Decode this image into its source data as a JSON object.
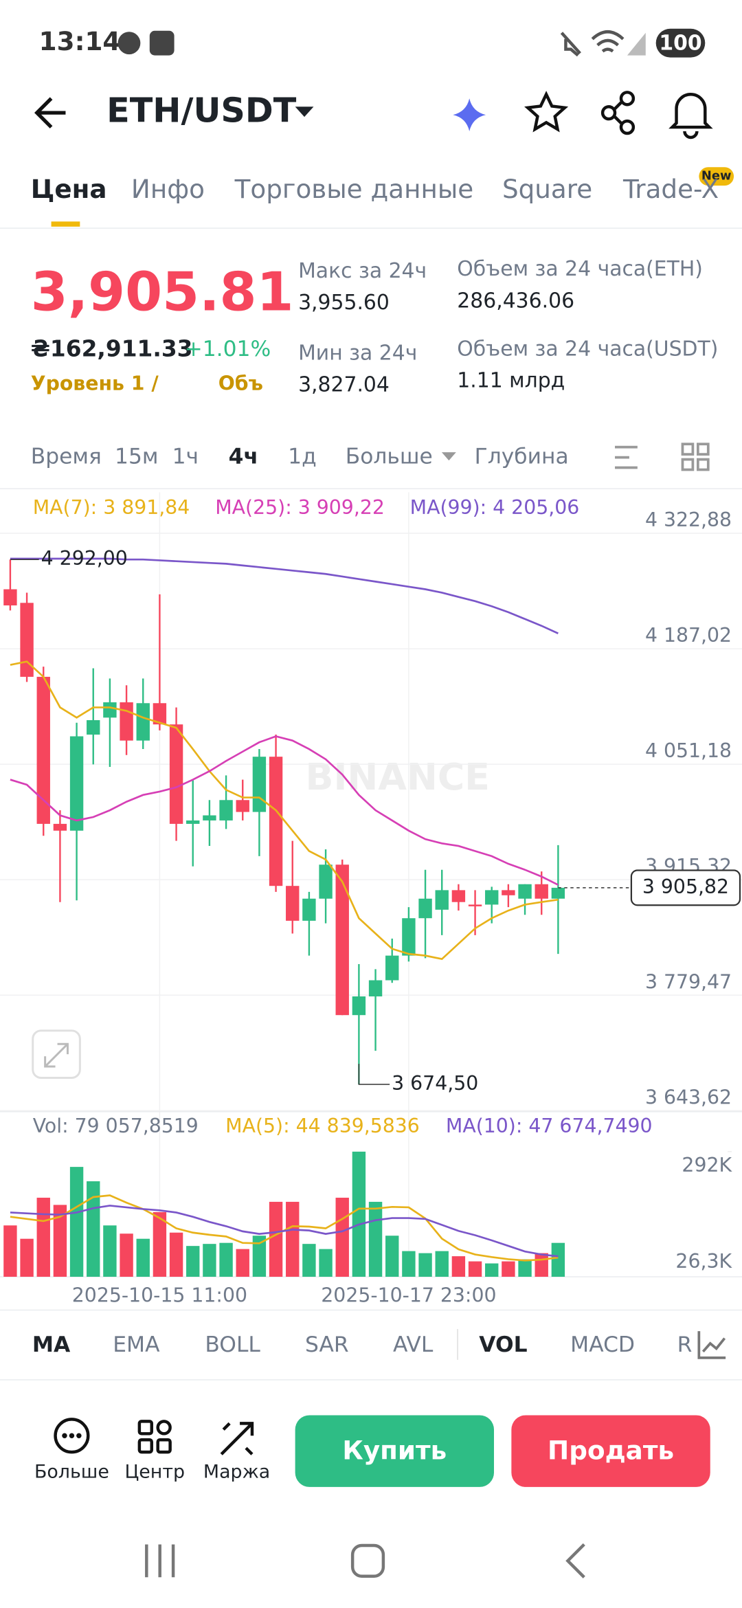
{
  "status_bar": {
    "time": "13:14",
    "battery": "100"
  },
  "header": {
    "pair": "ETH/USDT"
  },
  "tabs": [
    "Цена",
    "Инфо",
    "Торговые данные",
    "Square",
    "Trade-X"
  ],
  "tab_badge": "New",
  "ticker": {
    "price": "3,905.81",
    "price_uah": "₴162,911.33",
    "change": "+1.01%",
    "level": "Уровень 1 /",
    "volume_short": "Объ",
    "stats": [
      {
        "label": "Макс за 24ч",
        "value": "3,955.60"
      },
      {
        "label": "Мин за 24ч",
        "value": "3,827.04"
      },
      {
        "label": "Объем за 24 часа(ETH)",
        "value": "286,436.06"
      },
      {
        "label": "Объем за 24 часа(USDT)",
        "value": "1.11 млрд"
      }
    ]
  },
  "intervals": [
    "Время",
    "15м",
    "1ч",
    "4ч",
    "1д",
    "Больше",
    "Глубина"
  ],
  "chart_data": {
    "type": "candlestick",
    "watermark": "BINANCE",
    "times": [
      null,
      null,
      null,
      null,
      null,
      null,
      null,
      null,
      null,
      "2025-10-15 11:00",
      null,
      null,
      null,
      null,
      null,
      null,
      null,
      null,
      null,
      null,
      null,
      null,
      null,
      null,
      "2025-10-17 23:00",
      null,
      null,
      null,
      null,
      null,
      null,
      null,
      null,
      null
    ],
    "candles": [
      {
        "open": 4257,
        "high": 4292,
        "low": 4232,
        "close": 4238
      },
      {
        "open": 4241,
        "high": 4253,
        "low": 4148,
        "close": 4154
      },
      {
        "open": 4154,
        "high": 4166,
        "low": 3967,
        "close": 3981
      },
      {
        "open": 3981,
        "high": 3997,
        "low": 3889,
        "close": 3973
      },
      {
        "open": 3973,
        "high": 4100,
        "low": 3891,
        "close": 4084
      },
      {
        "open": 4086,
        "high": 4164,
        "low": 4051,
        "close": 4103
      },
      {
        "open": 4106,
        "high": 4152,
        "low": 4048,
        "close": 4124
      },
      {
        "open": 4124,
        "high": 4144,
        "low": 4062,
        "close": 4079
      },
      {
        "open": 4079,
        "high": 4152,
        "low": 4069,
        "close": 4123
      },
      {
        "open": 4123,
        "high": 4251,
        "low": 4091,
        "close": 4098
      },
      {
        "open": 4098,
        "high": 4118,
        "low": 3961,
        "close": 3981
      },
      {
        "open": 3981,
        "high": 4033,
        "low": 3931,
        "close": 3985
      },
      {
        "open": 3985,
        "high": 4009,
        "low": 3955,
        "close": 3991
      },
      {
        "open": 3985,
        "high": 4038,
        "low": 3975,
        "close": 4009
      },
      {
        "open": 4009,
        "high": 4033,
        "low": 3985,
        "close": 3995
      },
      {
        "open": 3995,
        "high": 4069,
        "low": 3943,
        "close": 4060
      },
      {
        "open": 4060,
        "high": 4086,
        "low": 3901,
        "close": 3908
      },
      {
        "open": 3908,
        "high": 3961,
        "low": 3852,
        "close": 3867
      },
      {
        "open": 3867,
        "high": 3901,
        "low": 3826,
        "close": 3893
      },
      {
        "open": 3893,
        "high": 3951,
        "low": 3864,
        "close": 3933
      },
      {
        "open": 3933,
        "high": 3939,
        "low": 3756,
        "close": 3756
      },
      {
        "open": 3756,
        "high": 3816,
        "low": 3674.5,
        "close": 3778
      },
      {
        "open": 3778,
        "high": 3810,
        "low": 3714,
        "close": 3797
      },
      {
        "open": 3797,
        "high": 3846,
        "low": 3794,
        "close": 3826
      },
      {
        "open": 3826,
        "high": 3883,
        "low": 3819,
        "close": 3870
      },
      {
        "open": 3870,
        "high": 3927,
        "low": 3823,
        "close": 3893
      },
      {
        "open": 3880,
        "high": 3927,
        "low": 3850,
        "close": 3903
      },
      {
        "open": 3903,
        "high": 3910,
        "low": 3879,
        "close": 3889
      },
      {
        "open": 3886,
        "high": 3903,
        "low": 3850,
        "close": 3884
      },
      {
        "open": 3886,
        "high": 3907,
        "low": 3864,
        "close": 3903
      },
      {
        "open": 3903,
        "high": 3910,
        "low": 3883,
        "close": 3897
      },
      {
        "open": 3893,
        "high": 3910,
        "low": 3874,
        "close": 3910
      },
      {
        "open": 3910,
        "high": 3925,
        "low": 3874,
        "close": 3893
      },
      {
        "open": 3893,
        "high": 3956,
        "low": 3828,
        "close": 3905.82
      }
    ],
    "up_color": "#2ebd85",
    "down_color": "#f6465d",
    "ylim": [
      3643.62,
      4322.88
    ],
    "yticks": [
      {
        "value": 4322.88,
        "label": "4 322,88"
      },
      {
        "value": 4187.02,
        "label": "4 187,02"
      },
      {
        "value": 4051.18,
        "label": "4 051,18"
      },
      {
        "value": 3915.32,
        "label": "3 915,32"
      },
      {
        "value": 3779.47,
        "label": "3 779,47"
      },
      {
        "value": 3643.62,
        "label": "3 643,62"
      }
    ],
    "last_price": {
      "value": 3905.82,
      "label": "3 905,82"
    },
    "high_label": "4 292,00",
    "low_label": "3 674,50",
    "series": [
      {
        "legend": "MA(7): 3 891,84",
        "color": "#e8b21a",
        "values": [
          4168,
          4172,
          4154,
          4118,
          4106,
          4118,
          4118,
          4114,
          4106,
          4100,
          4094,
          4069,
          4043,
          4021,
          4012,
          4012,
          3997,
          3973,
          3949,
          3939,
          3913,
          3870,
          3852,
          3834,
          3828,
          3826,
          3822,
          3840,
          3858,
          3870,
          3879,
          3886,
          3889,
          3891.84
        ]
      },
      {
        "legend": "MA(25): 3 909,22",
        "color": "#d63fb5",
        "values": [
          4033,
          4027,
          4009,
          3991,
          3985,
          3989,
          3997,
          4007,
          4015,
          4019,
          4024,
          4033,
          4043,
          4055,
          4066,
          4077,
          4084,
          4079,
          4069,
          4057,
          4039,
          4015,
          3997,
          3985,
          3973,
          3963,
          3958,
          3955,
          3949,
          3943,
          3934,
          3927,
          3919,
          3909.22
        ]
      },
      {
        "legend": "MA(99): 4 205,06",
        "color": "#7a56c9",
        "values": [
          4293,
          4293,
          4293,
          4293,
          4293,
          4293,
          4293,
          4292,
          4292,
          4291,
          4290,
          4289,
          4288,
          4287,
          4285,
          4283,
          4281,
          4279,
          4277,
          4275,
          4272,
          4269,
          4266,
          4263,
          4260,
          4257,
          4253,
          4248,
          4243,
          4237,
          4230,
          4222,
          4214,
          4205.06
        ]
      }
    ],
    "volume": {
      "legend": "Vol: 79 057,8519",
      "ylim": [
        0,
        359000
      ],
      "yticks": [
        {
          "value": 292000,
          "label": "292K"
        },
        {
          "value": 26300,
          "label": "26,3K"
        }
      ],
      "values": [
        119800,
        88650,
        184490,
        167720,
        256370,
        222830,
        119800,
        100630,
        88650,
        150950,
        103030,
        71880,
        76670,
        79070,
        64690,
        95840,
        174910,
        174910,
        76670,
        64690,
        184490,
        292000,
        174910,
        95840,
        59900,
        55110,
        59900,
        47920,
        35940,
        31150,
        35940,
        40730,
        55110,
        79057.8519
      ],
      "series": [
        {
          "legend": "MA(5): 44 839,5836",
          "color": "#e8b21a",
          "values": [
            140000,
            135000,
            130000,
            140000,
            163000,
            186000,
            190000,
            173000,
            158000,
            137000,
            113000,
            103000,
            98000,
            94000,
            79000,
            78000,
            98000,
            118000,
            117000,
            113000,
            135000,
            159000,
            159000,
            163000,
            162000,
            136000,
            89000,
            64000,
            52000,
            46000,
            41000,
            38000,
            40000,
            44839.5836
          ]
        },
        {
          "legend": "MA(10): 47 674,7490",
          "color": "#7a56c9",
          "values": [
            150000,
            148000,
            146000,
            145000,
            150000,
            160000,
            166000,
            162000,
            158000,
            155000,
            150000,
            140000,
            128000,
            118000,
            106000,
            100000,
            104000,
            110000,
            108000,
            100000,
            106000,
            122000,
            132000,
            137000,
            137000,
            135000,
            121000,
            107000,
            97000,
            85000,
            72000,
            59000,
            52000,
            47674.749
          ]
        }
      ]
    }
  },
  "indicators": [
    "MA",
    "EMA",
    "BOLL",
    "SAR",
    "AVL",
    "VOL",
    "MACD",
    "R"
  ],
  "actions": [
    "Больше",
    "Центр",
    "Маржа"
  ],
  "buy": "Купить",
  "sell": "Продать"
}
